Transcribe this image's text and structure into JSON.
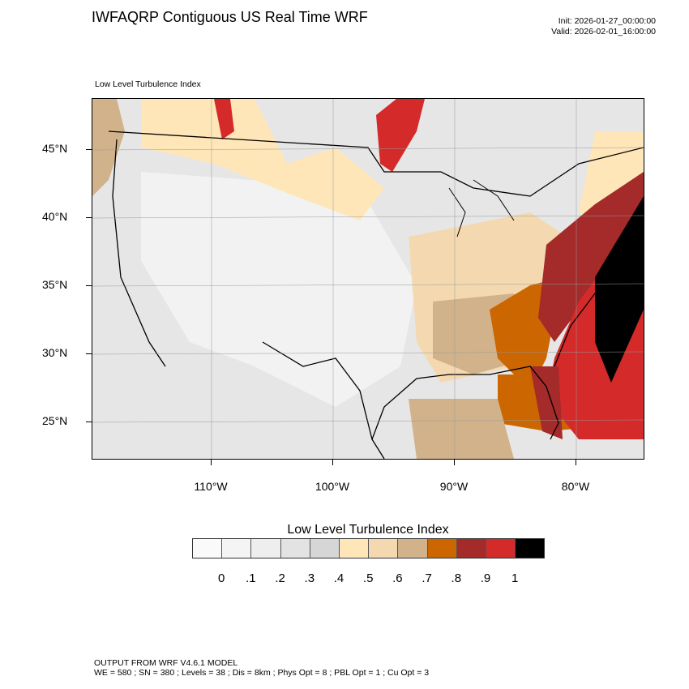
{
  "title": "IWFAQRP Contiguous US Real Time WRF",
  "init": "Init: 2026-01-27_00:00:00",
  "valid": "Valid: 2026-02-01_16:00:00",
  "subtitle": "Low Level Turbulence Index",
  "lat_labels": [
    "45°N",
    "40°N",
    "35°N",
    "30°N",
    "25°N"
  ],
  "lon_labels": [
    "110°W",
    "100°W",
    "90°W",
    "80°W"
  ],
  "colorbar": {
    "title": "Low Level Turbulence Index",
    "colors": [
      "#fafafa",
      "#f4f4f4",
      "#eeeeee",
      "#e3e3e3",
      "#d6d6d6",
      "#fee6b8",
      "#f4d9b0",
      "#d1b28b",
      "#cc6600",
      "#a52a2a",
      "#d42a2a",
      "#000000"
    ],
    "labels": [
      "0",
      ".1",
      ".2",
      ".3",
      ".4",
      ".5",
      ".6",
      ".7",
      ".8",
      ".9",
      "1"
    ]
  },
  "footer": {
    "line1": "OUTPUT FROM WRF V4.6.1 MODEL",
    "line2": "WE = 580 ; SN = 380 ; Levels = 38 ; Dis = 8km ; Phys Opt = 8 ; PBL Opt = 1 ; Cu Opt = 3"
  }
}
